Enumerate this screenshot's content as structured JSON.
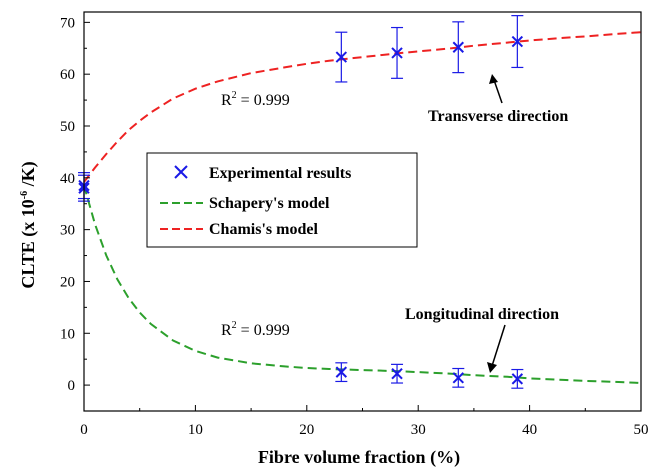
{
  "chart_data": {
    "type": "scatter",
    "title": "",
    "xlabel": "Fibre volume fraction (%)",
    "ylabel_parts": {
      "pre": "CLTE (x 10",
      "sup": "-6",
      "post": " /K)"
    },
    "xlim": [
      0,
      50
    ],
    "ylim": [
      -5,
      72
    ],
    "xticks": [
      "0",
      "10",
      "20",
      "30",
      "40",
      "50"
    ],
    "yticks": [
      "0",
      "10",
      "20",
      "30",
      "40",
      "50",
      "60",
      "70"
    ],
    "grid": false,
    "legend_position": "center-left",
    "legend": [
      {
        "key": "experimental",
        "label": "Experimental results"
      },
      {
        "key": "schapery",
        "label": "Schapery's model"
      },
      {
        "key": "chamis",
        "label": "Chamis's model"
      }
    ],
    "series": [
      {
        "key": "experimental",
        "marker": "x",
        "color": "#1a1ae6",
        "points": [
          {
            "x": 0,
            "y": 38.5,
            "err": 2.5
          },
          {
            "x": 0,
            "y": 38.0,
            "err": 2.5
          },
          {
            "x": 23.1,
            "y": 63.3,
            "err": 4.8
          },
          {
            "x": 28.1,
            "y": 64.1,
            "err": 4.9
          },
          {
            "x": 33.6,
            "y": 65.2,
            "err": 4.9
          },
          {
            "x": 38.9,
            "y": 66.3,
            "err": 5.0
          },
          {
            "x": 23.1,
            "y": 2.5,
            "err": 1.8
          },
          {
            "x": 28.1,
            "y": 2.2,
            "err": 1.8
          },
          {
            "x": 33.6,
            "y": 1.4,
            "err": 1.8
          },
          {
            "x": 38.9,
            "y": 1.2,
            "err": 1.8
          }
        ]
      },
      {
        "key": "chamis",
        "color": "#ee2222",
        "dash": true,
        "x": [
          0,
          1,
          2,
          3,
          4,
          5,
          6,
          8,
          10,
          12,
          15,
          18,
          20,
          22,
          25,
          28,
          30,
          33,
          35,
          38,
          40,
          43,
          45,
          48,
          50
        ],
        "y": [
          39.2,
          42.0,
          44.6,
          47.0,
          49.2,
          51.0,
          52.6,
          55.3,
          57.2,
          58.6,
          60.2,
          61.3,
          62.0,
          62.6,
          63.3,
          64.0,
          64.4,
          65.0,
          65.5,
          66.1,
          66.5,
          67.0,
          67.3,
          67.8,
          68.1
        ]
      },
      {
        "key": "schapery",
        "color": "#2ca02c",
        "dash": true,
        "x": [
          0,
          1,
          2,
          3,
          4,
          5,
          6,
          8,
          10,
          12,
          15,
          18,
          20,
          22,
          25,
          28,
          30,
          33,
          35,
          38,
          40,
          43,
          45,
          48,
          50
        ],
        "y": [
          38.5,
          31.0,
          25.0,
          20.4,
          16.8,
          14.0,
          11.8,
          8.6,
          6.6,
          5.3,
          4.2,
          3.6,
          3.3,
          3.1,
          2.9,
          2.7,
          2.5,
          2.2,
          1.9,
          1.6,
          1.3,
          1.0,
          0.8,
          0.6,
          0.4
        ]
      }
    ],
    "annotations": {
      "r2_top": {
        "main": "R",
        "sup": "2",
        "rest": " = 0.999"
      },
      "r2_bottom": {
        "main": "R",
        "sup": "2",
        "rest": " = 0.999"
      },
      "transverse": "Transverse direction",
      "longitudinal": "Longitudinal direction"
    }
  }
}
